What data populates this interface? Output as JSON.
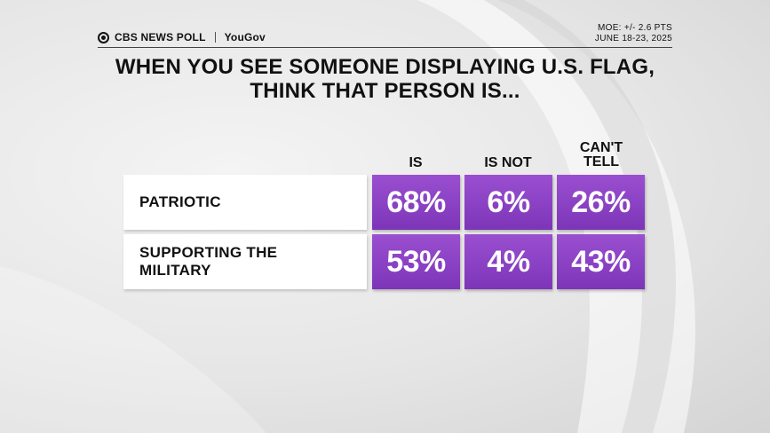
{
  "header": {
    "brand_cbs": "CBS NEWS POLL",
    "brand_partner": "YouGov",
    "moe": "MOE: +/- 2.6 PTS",
    "dates": "JUNE 18-23, 2025"
  },
  "title_line1": "WHEN YOU SEE SOMEONE DISPLAYING U.S. FLAG,",
  "title_line2": "THINK THAT PERSON IS...",
  "columns": [
    "IS",
    "IS NOT",
    "CAN'T TELL"
  ],
  "rows": [
    {
      "label": "PATRIOTIC",
      "values": [
        "68%",
        "6%",
        "26%"
      ]
    },
    {
      "label": "SUPPORTING THE MILITARY",
      "values": [
        "53%",
        "4%",
        "43%"
      ]
    }
  ],
  "chart_data": {
    "type": "table",
    "title": "WHEN YOU SEE SOMEONE DISPLAYING U.S. FLAG, THINK THAT PERSON IS...",
    "categories": [
      "PATRIOTIC",
      "SUPPORTING THE MILITARY"
    ],
    "series": [
      {
        "name": "IS",
        "values": [
          68,
          53
        ]
      },
      {
        "name": "IS NOT",
        "values": [
          6,
          4
        ]
      },
      {
        "name": "CAN'T TELL",
        "values": [
          26,
          43
        ]
      }
    ],
    "unit": "%"
  },
  "colors": {
    "cell": "#8a42c4",
    "label_bg": "#ffffff"
  }
}
